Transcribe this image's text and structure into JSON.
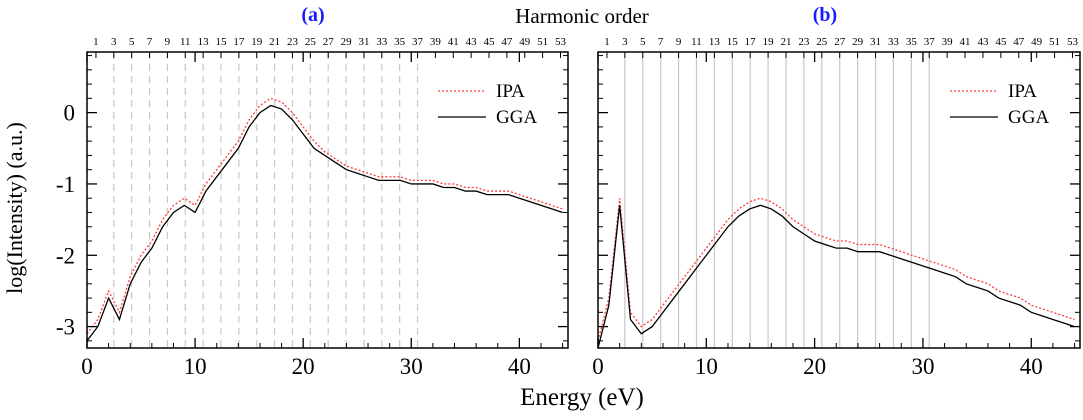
{
  "figure": {
    "top_label": "Harmonic order",
    "xlabel": "Energy (eV)",
    "ylabel": "log(Intensity) (a.u.)"
  },
  "colors": {
    "ipa": "#ff3b3b",
    "gga": "#000000",
    "panel_label": "#1a1aff",
    "guide": "#c8c8c8"
  },
  "chart_data": [
    {
      "type": "line",
      "panel_label": "(a)",
      "xlabel": "Energy (eV)",
      "ylabel": "log(Intensity) (a.u.)",
      "top_axis_label": "Harmonic order",
      "xlim": [
        0,
        44.5
      ],
      "ylim": [
        -3.3,
        0.85
      ],
      "x_ticks": [
        0,
        10,
        20,
        30,
        40
      ],
      "y_ticks": [
        -3,
        -2,
        -1,
        0
      ],
      "top_ticks": [
        1,
        3,
        5,
        7,
        9,
        11,
        13,
        15,
        17,
        19,
        21,
        23,
        25,
        27,
        29,
        31,
        33,
        35,
        37,
        39,
        41,
        43,
        45,
        47,
        49,
        51,
        53
      ],
      "harmonic_spacing_eV": 0.8265,
      "guides": {
        "orders_from": 3,
        "orders_to": 37,
        "style": "dashed"
      },
      "legend": {
        "placement": "top-right",
        "entries": [
          "IPA",
          "GGA"
        ]
      },
      "series": [
        {
          "name": "IPA",
          "style": "dotted",
          "x": [
            0,
            1,
            2,
            3,
            4,
            5,
            6,
            7,
            8,
            9,
            10,
            11,
            12,
            13,
            14,
            15,
            16,
            17,
            18,
            19,
            20,
            21,
            22,
            23,
            24,
            25,
            26,
            27,
            28,
            29,
            30,
            31,
            32,
            33,
            34,
            35,
            36,
            37,
            38,
            39,
            40,
            41,
            42,
            43,
            44
          ],
          "y": [
            -3.1,
            -2.9,
            -2.5,
            -2.8,
            -2.3,
            -2.0,
            -1.8,
            -1.5,
            -1.3,
            -1.2,
            -1.3,
            -1.0,
            -0.8,
            -0.6,
            -0.4,
            -0.1,
            0.1,
            0.2,
            0.15,
            0.0,
            -0.2,
            -0.4,
            -0.55,
            -0.65,
            -0.75,
            -0.8,
            -0.85,
            -0.9,
            -0.9,
            -0.9,
            -0.95,
            -0.95,
            -0.95,
            -1.0,
            -1.0,
            -1.05,
            -1.05,
            -1.1,
            -1.1,
            -1.1,
            -1.15,
            -1.2,
            -1.25,
            -1.3,
            -1.35
          ]
        },
        {
          "name": "GGA",
          "style": "solid",
          "x": [
            0,
            1,
            2,
            3,
            4,
            5,
            6,
            7,
            8,
            9,
            10,
            11,
            12,
            13,
            14,
            15,
            16,
            17,
            18,
            19,
            20,
            21,
            22,
            23,
            24,
            25,
            26,
            27,
            28,
            29,
            30,
            31,
            32,
            33,
            34,
            35,
            36,
            37,
            38,
            39,
            40,
            41,
            42,
            43,
            44
          ],
          "y": [
            -3.2,
            -3.0,
            -2.6,
            -2.9,
            -2.4,
            -2.1,
            -1.9,
            -1.6,
            -1.4,
            -1.3,
            -1.4,
            -1.1,
            -0.9,
            -0.7,
            -0.5,
            -0.2,
            0.0,
            0.1,
            0.05,
            -0.1,
            -0.3,
            -0.5,
            -0.6,
            -0.7,
            -0.8,
            -0.85,
            -0.9,
            -0.95,
            -0.95,
            -0.95,
            -1.0,
            -1.0,
            -1.0,
            -1.05,
            -1.05,
            -1.1,
            -1.1,
            -1.15,
            -1.15,
            -1.15,
            -1.2,
            -1.25,
            -1.3,
            -1.35,
            -1.4
          ]
        }
      ]
    },
    {
      "type": "line",
      "panel_label": "(b)",
      "xlabel": "Energy (eV)",
      "ylabel": "",
      "xlim": [
        0,
        44.5
      ],
      "ylim": [
        -3.3,
        0.85
      ],
      "x_ticks": [
        0,
        10,
        20,
        30,
        40
      ],
      "y_ticks": [
        -3,
        -2,
        -1,
        0
      ],
      "top_ticks": [
        1,
        3,
        5,
        7,
        9,
        11,
        13,
        15,
        17,
        19,
        21,
        23,
        25,
        27,
        29,
        31,
        33,
        35,
        37,
        39,
        41,
        43,
        45,
        47,
        49,
        51,
        53
      ],
      "harmonic_spacing_eV": 0.8265,
      "guides": {
        "orders_from": 3,
        "orders_to": 37,
        "style": "solid"
      },
      "legend": {
        "placement": "top-right",
        "entries": [
          "IPA",
          "GGA"
        ]
      },
      "series": [
        {
          "name": "IPA",
          "style": "dotted",
          "x": [
            0,
            1,
            2,
            3,
            4,
            5,
            6,
            7,
            8,
            9,
            10,
            11,
            12,
            13,
            14,
            15,
            16,
            17,
            18,
            19,
            20,
            21,
            22,
            23,
            24,
            25,
            26,
            27,
            28,
            29,
            30,
            31,
            32,
            33,
            34,
            35,
            36,
            37,
            38,
            39,
            40,
            41,
            42,
            43,
            44
          ],
          "y": [
            -3.2,
            -2.6,
            -1.2,
            -2.8,
            -3.0,
            -2.9,
            -2.7,
            -2.5,
            -2.3,
            -2.1,
            -1.9,
            -1.7,
            -1.5,
            -1.35,
            -1.25,
            -1.2,
            -1.25,
            -1.35,
            -1.5,
            -1.6,
            -1.7,
            -1.75,
            -1.8,
            -1.8,
            -1.85,
            -1.85,
            -1.85,
            -1.9,
            -1.95,
            -2.0,
            -2.05,
            -2.1,
            -2.15,
            -2.2,
            -2.3,
            -2.35,
            -2.4,
            -2.5,
            -2.55,
            -2.6,
            -2.7,
            -2.75,
            -2.8,
            -2.85,
            -2.9
          ]
        },
        {
          "name": "GGA",
          "style": "solid",
          "x": [
            0,
            1,
            2,
            3,
            4,
            5,
            6,
            7,
            8,
            9,
            10,
            11,
            12,
            13,
            14,
            15,
            16,
            17,
            18,
            19,
            20,
            21,
            22,
            23,
            24,
            25,
            26,
            27,
            28,
            29,
            30,
            31,
            32,
            33,
            34,
            35,
            36,
            37,
            38,
            39,
            40,
            41,
            42,
            43,
            44
          ],
          "y": [
            -3.3,
            -2.7,
            -1.3,
            -2.9,
            -3.1,
            -3.0,
            -2.8,
            -2.6,
            -2.4,
            -2.2,
            -2.0,
            -1.8,
            -1.6,
            -1.45,
            -1.35,
            -1.3,
            -1.35,
            -1.45,
            -1.6,
            -1.7,
            -1.8,
            -1.85,
            -1.9,
            -1.9,
            -1.95,
            -1.95,
            -1.95,
            -2.0,
            -2.05,
            -2.1,
            -2.15,
            -2.2,
            -2.25,
            -2.3,
            -2.4,
            -2.45,
            -2.5,
            -2.6,
            -2.65,
            -2.7,
            -2.8,
            -2.85,
            -2.9,
            -2.95,
            -3.0
          ]
        }
      ]
    }
  ]
}
